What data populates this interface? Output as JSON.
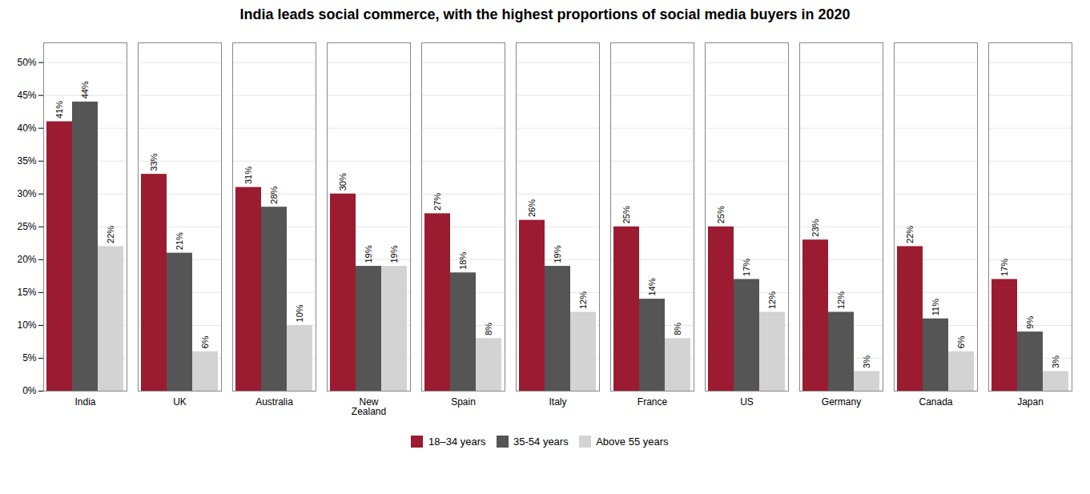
{
  "chart_data": {
    "type": "bar",
    "title": "India leads social commerce, with the highest proportions of social media buyers in 2020",
    "categories": [
      "India",
      "UK",
      "Australia",
      "New\nZealand",
      "Spain",
      "Italy",
      "France",
      "US",
      "Germany",
      "Canada",
      "Japan"
    ],
    "series": [
      {
        "name": "18–34 years",
        "color": "#9b1b30",
        "values": [
          41,
          33,
          31,
          30,
          27,
          26,
          25,
          25,
          23,
          22,
          17
        ],
        "value_labels": [
          "41%",
          "33%",
          "31%",
          "30%",
          "27%",
          "26%",
          "25%",
          "25%",
          "23%",
          "22%",
          "17%"
        ]
      },
      {
        "name": "35-54 years",
        "color": "#555555",
        "values": [
          44,
          21,
          28,
          19,
          18,
          19,
          14,
          17,
          12,
          11,
          9
        ],
        "value_labels": [
          "44%",
          "21%",
          "28%",
          "19%",
          "18%",
          "19%",
          "14%",
          "17%",
          "12%",
          "11%",
          "9%"
        ]
      },
      {
        "name": "Above 55 years",
        "color": "#d3d3d3",
        "values": [
          22,
          6,
          10,
          19,
          8,
          12,
          8,
          12,
          3,
          6,
          3
        ],
        "value_labels": [
          "22%",
          "6%",
          "10%",
          "19%",
          "8%",
          "12%",
          "8%",
          "12%",
          "3%",
          "6%",
          "3%"
        ]
      }
    ],
    "ylim": [
      0,
      53
    ],
    "yticks": [
      {
        "value": 0,
        "label": "0%"
      },
      {
        "value": 5,
        "label": "5%"
      },
      {
        "value": 10,
        "label": "10%"
      },
      {
        "value": 15,
        "label": "15%"
      },
      {
        "value": 20,
        "label": "20%"
      },
      {
        "value": 25,
        "label": "25%"
      },
      {
        "value": 30,
        "label": "30%"
      },
      {
        "value": 35,
        "label": "35%"
      },
      {
        "value": 40,
        "label": "40%"
      },
      {
        "value": 45,
        "label": "45%"
      },
      {
        "value": 50,
        "label": "50%"
      }
    ],
    "grid": true,
    "data_labels": true,
    "legend": "bottom"
  }
}
